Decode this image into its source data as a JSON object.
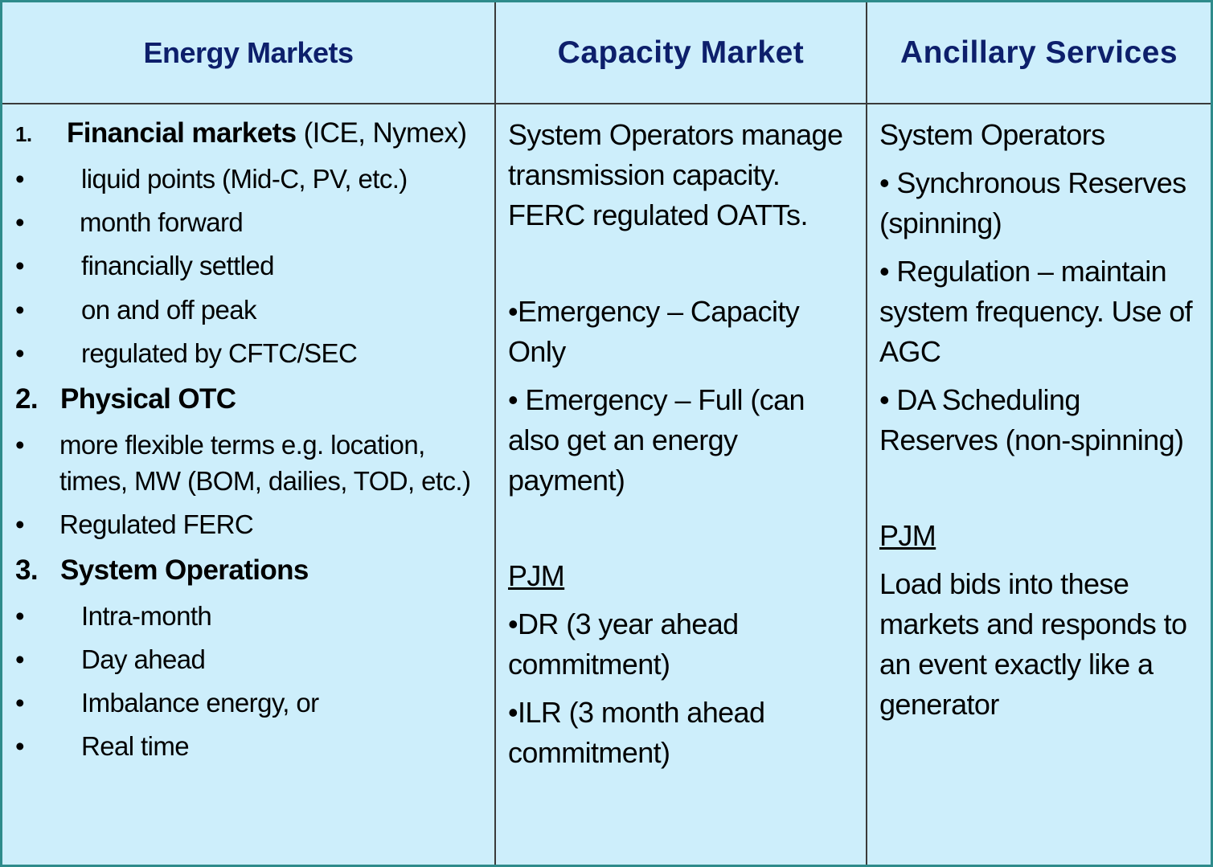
{
  "headers": {
    "energy": "Energy Markets",
    "capacity": "Capacity Market",
    "ancillary": "Ancillary Services"
  },
  "energy": {
    "s1_num": "1.",
    "s1_title": "Financial markets",
    "s1_suffix": " (ICE, Nymex)",
    "s1_items": [
      "liquid points (Mid-C, PV, etc.)",
      "month forward",
      "financially settled",
      "on and off peak",
      "regulated by CFTC/SEC"
    ],
    "s2_num": "2.",
    "s2_title": "Physical OTC",
    "s2_items": [
      "more flexible terms e.g. location,",
      "times, MW (BOM, dailies, TOD, etc.)",
      "Regulated FERC"
    ],
    "s3_num": "3.",
    "s3_title": "System Operations",
    "s3_items": [
      "Intra-month",
      "Day ahead",
      "Imbalance energy, or",
      "Real time"
    ],
    "bullet": "•"
  },
  "capacity": {
    "intro": [
      "System Operators manage",
      "transmission capacity.",
      "FERC regulated OATTs."
    ],
    "emergency_cap": [
      "•Emergency – Capacity",
      "Only"
    ],
    "emergency_full": [
      "• Emergency – Full (can",
      "also get an energy",
      "payment)"
    ],
    "pjm": "PJM",
    "dr": [
      "•DR (3 year ahead",
      "commitment)"
    ],
    "ilr": [
      "•ILR (3 month ahead",
      "commitment)"
    ]
  },
  "ancillary": {
    "intro": "System Operators",
    "sync": [
      "• Synchronous Reserves",
      "(spinning)"
    ],
    "regulation": [
      "• Regulation – maintain",
      "system frequency. Use of",
      "AGC"
    ],
    "da": [
      "• DA Scheduling",
      "Reserves (non-spinning)"
    ],
    "pjm": "PJM",
    "load": [
      "Load bids into these",
      "markets and responds to",
      "an event exactly like a",
      "generator"
    ]
  }
}
